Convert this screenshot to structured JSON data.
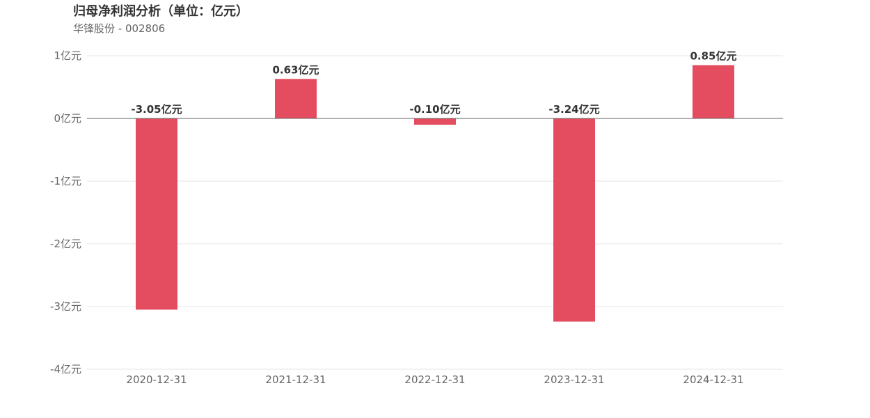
{
  "title": "归母净利润分析（单位：亿元）",
  "subtitle": "华锋股份 - 002806",
  "chart_data": {
    "type": "bar",
    "categories": [
      "2020-12-31",
      "2021-12-31",
      "2022-12-31",
      "2023-12-31",
      "2024-12-31"
    ],
    "values": [
      -3.05,
      0.63,
      -0.1,
      -3.24,
      0.85
    ],
    "data_labels": [
      "-3.05亿元",
      "0.63亿元",
      "-0.10亿元",
      "-3.24亿元",
      "0.85亿元"
    ],
    "title": "归母净利润分析（单位：亿元）",
    "subtitle": "华锋股份 - 002806",
    "xlabel": "",
    "ylabel": "",
    "ylim": [
      -4,
      1
    ],
    "yticks": [
      1,
      0,
      -1,
      -2,
      -3,
      -4
    ],
    "ytick_labels": [
      "1亿元",
      "0亿元",
      "-1亿元",
      "-2亿元",
      "-3亿元",
      "-4亿元"
    ],
    "grid": true,
    "legend": "none",
    "bar_color": "#e44d5f"
  }
}
